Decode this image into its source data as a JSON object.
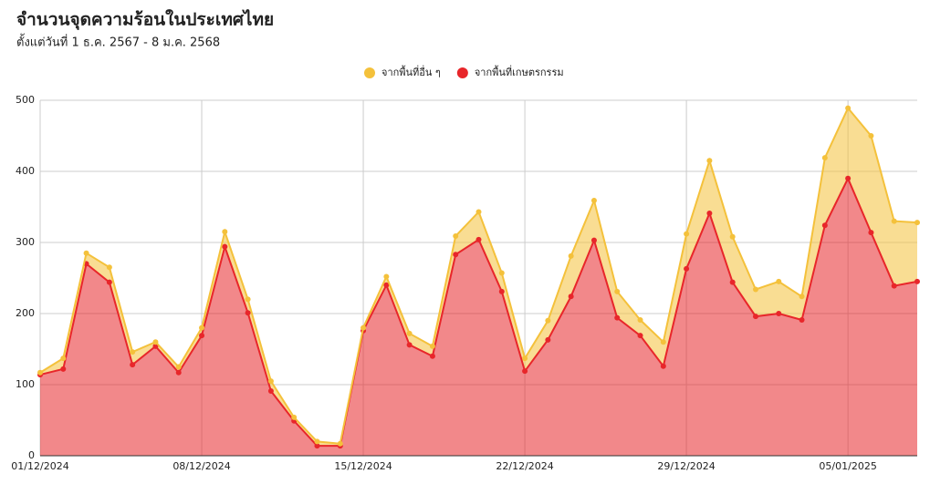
{
  "chart_data": {
    "type": "area",
    "stacked": true,
    "title": "จำนวนจุดความร้อนในประเทศไทย",
    "subtitle": "ตั้งแต่วันที่ 1 ธ.ค. 2567 - 8 ม.ค. 2568",
    "categories": [
      "01/12/2024",
      null,
      null,
      null,
      null,
      null,
      null,
      "08/12/2024",
      null,
      null,
      null,
      null,
      null,
      null,
      "15/12/2024",
      null,
      null,
      null,
      null,
      null,
      null,
      "22/12/2024",
      null,
      null,
      null,
      null,
      null,
      null,
      "29/12/2024",
      null,
      null,
      null,
      null,
      null,
      null,
      "05/01/2025",
      null,
      null,
      null
    ],
    "series": [
      {
        "name": "จากพื้นที่อื่น ๆ",
        "color": "#f4c13b",
        "values": [
          3,
          15,
          15,
          21,
          18,
          6,
          8,
          11,
          21,
          19,
          14,
          5,
          6,
          3,
          4,
          12,
          16,
          14,
          26,
          39,
          26,
          18,
          27,
          57,
          56,
          37,
          22,
          34,
          49,
          74,
          64,
          38,
          45,
          33,
          95,
          99,
          136,
          91,
          83
        ]
      },
      {
        "name": "จากพื้นที่เกษตรกรรม",
        "color": "#e8262a",
        "values": [
          114,
          122,
          270,
          244,
          128,
          154,
          117,
          169,
          294,
          201,
          91,
          49,
          14,
          14,
          176,
          240,
          156,
          140,
          283,
          304,
          231,
          119,
          163,
          224,
          303,
          194,
          169,
          126,
          263,
          341,
          244,
          196,
          200,
          191,
          324,
          390,
          314,
          239,
          245
        ]
      }
    ],
    "ylim": [
      0,
      500
    ],
    "yticks": [
      0,
      100,
      200,
      300,
      400,
      500
    ],
    "grid": true
  }
}
